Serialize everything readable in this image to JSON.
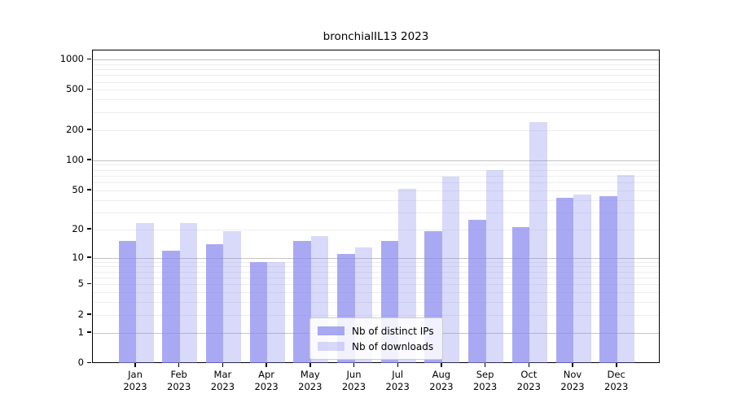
{
  "chart_data": {
    "type": "bar",
    "title": "bronchialIL13 2023",
    "categories": [
      {
        "month": "Jan",
        "year": "2023"
      },
      {
        "month": "Feb",
        "year": "2023"
      },
      {
        "month": "Mar",
        "year": "2023"
      },
      {
        "month": "Apr",
        "year": "2023"
      },
      {
        "month": "May",
        "year": "2023"
      },
      {
        "month": "Jun",
        "year": "2023"
      },
      {
        "month": "Jul",
        "year": "2023"
      },
      {
        "month": "Aug",
        "year": "2023"
      },
      {
        "month": "Sep",
        "year": "2023"
      },
      {
        "month": "Oct",
        "year": "2023"
      },
      {
        "month": "Nov",
        "year": "2023"
      },
      {
        "month": "Dec",
        "year": "2023"
      }
    ],
    "series": [
      {
        "name": "Nb of distinct IPs",
        "color": "#8888ee",
        "opacity": 0.72,
        "values": [
          15,
          12,
          14,
          9,
          15,
          11,
          15,
          19,
          25,
          21,
          42,
          44
        ]
      },
      {
        "name": "Nb of downloads",
        "color": "#8888ee",
        "opacity": 0.32,
        "values": [
          23,
          23,
          19,
          9,
          17,
          13,
          52,
          68,
          79,
          240,
          45,
          71
        ]
      }
    ],
    "yscale": "log(v+1)",
    "yticks": [
      0,
      1,
      2,
      5,
      10,
      20,
      50,
      100,
      200,
      500,
      1000
    ],
    "ytick_labels": [
      "0",
      "1",
      "2",
      "5",
      "10",
      "20",
      "50",
      "100",
      "200",
      "500",
      "1000"
    ],
    "ylim": [
      0,
      1200
    ],
    "grid": "on",
    "legend_position": "lower-center",
    "xlabel": "",
    "ylabel": ""
  },
  "colors": {
    "grid_minor": "#ededed",
    "grid_major": "#c4c4c4",
    "axis": "#000000",
    "background": "#ffffff"
  }
}
